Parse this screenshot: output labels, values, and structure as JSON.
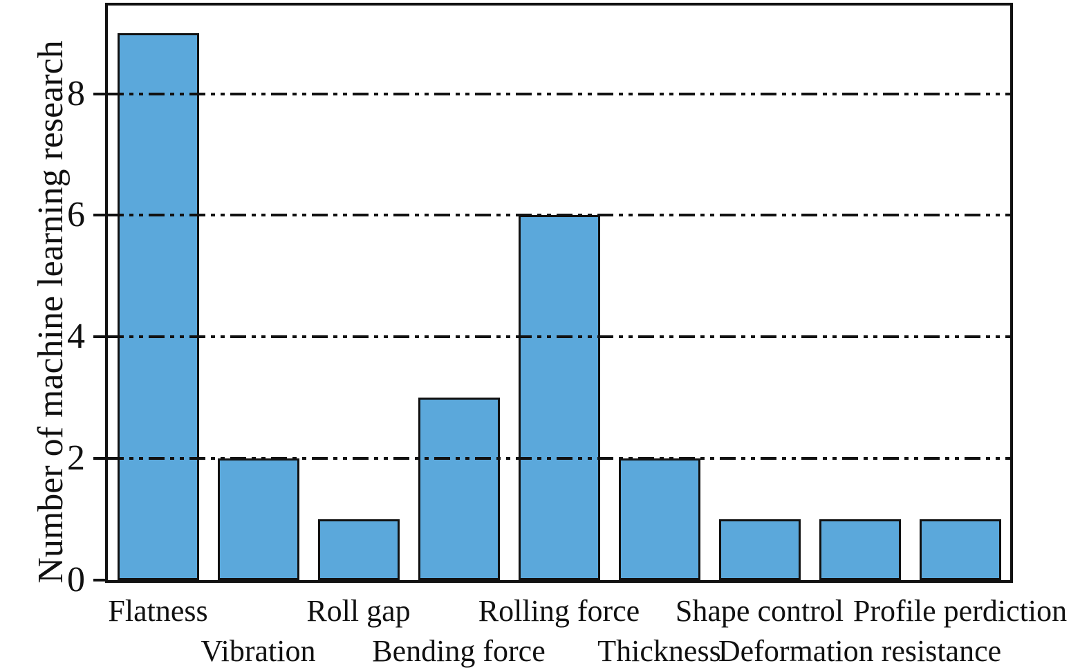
{
  "chart_data": {
    "type": "bar",
    "categories": [
      "Flatness",
      "Vibration",
      "Roll gap",
      "Bending force",
      "Rolling force",
      "Thickness",
      "Shape control",
      "Deformation resistance",
      "Profile perdiction"
    ],
    "values": [
      9,
      2,
      1,
      3,
      6,
      2,
      1,
      1,
      1
    ],
    "label_row": [
      0,
      1,
      0,
      1,
      0,
      1,
      0,
      1,
      0
    ],
    "title": "",
    "xlabel": "",
    "ylabel": "Number of machine learning research",
    "yticks": [
      0,
      2,
      4,
      6,
      8
    ],
    "grid_yticks": [
      2,
      4,
      6,
      8
    ],
    "ylim": [
      0,
      9.45
    ],
    "grid": "horizontal dash-dot-dot lines at y=2,4,6,8 drawn over bars",
    "legend": "none",
    "colors": {
      "bar_fill": "#5BA8DB",
      "bar_edge": "#111111",
      "axis": "#111111",
      "text": "#111111",
      "background": "#ffffff"
    }
  }
}
